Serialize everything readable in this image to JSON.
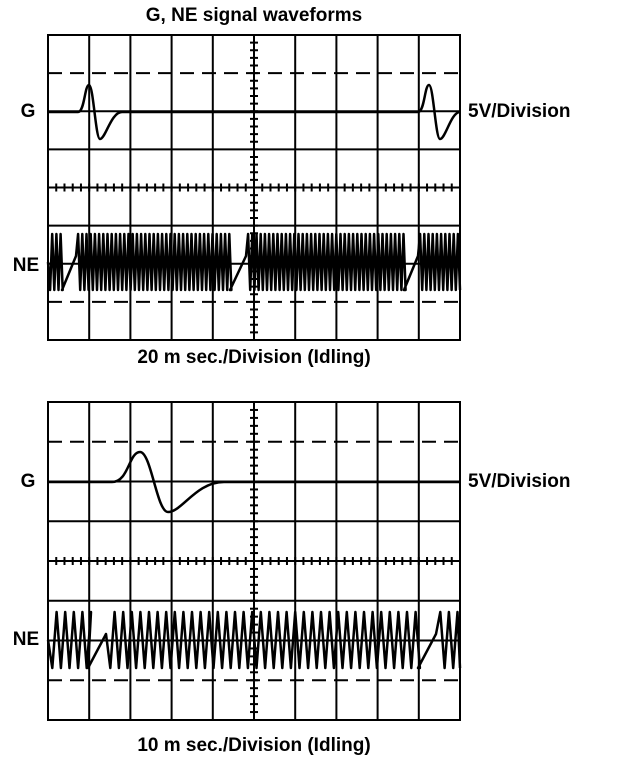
{
  "title": "G, NE signal waveforms",
  "panels": [
    {
      "g_label": "G",
      "ne_label": "NE",
      "scale_label": "5V/Division",
      "caption": "20 m sec./Division (Idling)"
    },
    {
      "g_label": "G",
      "ne_label": "NE",
      "scale_label": "5V/Division",
      "caption": "10 m sec./Division (Idling)"
    }
  ]
}
